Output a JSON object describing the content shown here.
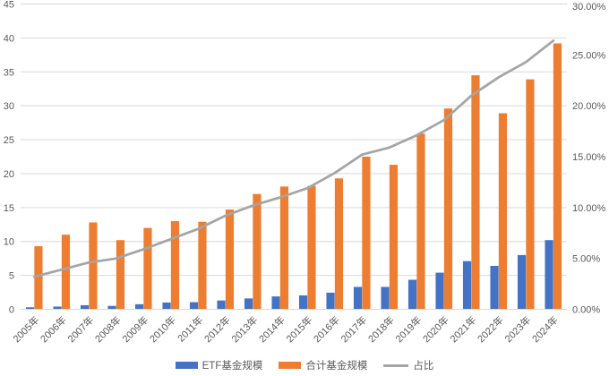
{
  "chart_data": {
    "type": "bar",
    "subtype": "combo-bar-line-dual-axis",
    "title": "",
    "categories": [
      "2005年",
      "2006年",
      "2007年",
      "2008年",
      "2009年",
      "2010年",
      "2011年",
      "2012年",
      "2013年",
      "2014年",
      "2015年",
      "2016年",
      "2017年",
      "2018年",
      "2019年",
      "2020年",
      "2021年",
      "2022年",
      "2023年",
      "2024年"
    ],
    "series": [
      {
        "name": "ETF基金规模",
        "type": "bar",
        "axis": "left",
        "color": "#4472C4",
        "values": [
          0.3,
          0.4,
          0.6,
          0.5,
          0.75,
          1.0,
          1.05,
          1.3,
          1.6,
          1.9,
          2.05,
          2.45,
          3.3,
          3.3,
          4.35,
          5.4,
          7.1,
          6.4,
          8.0,
          10.2
        ]
      },
      {
        "name": "合计基金规模",
        "type": "bar",
        "axis": "left",
        "color": "#ED7D31",
        "values": [
          9.3,
          11.0,
          12.8,
          10.2,
          12.0,
          13.0,
          12.9,
          14.7,
          17.0,
          18.1,
          18.2,
          19.3,
          22.5,
          21.3,
          25.9,
          29.6,
          34.5,
          28.9,
          33.9,
          39.2
        ]
      },
      {
        "name": "占比",
        "type": "line",
        "axis": "right",
        "color": "#A5A5A5",
        "values": [
          3.2,
          3.9,
          4.6,
          5.0,
          5.9,
          6.9,
          7.9,
          9.2,
          10.2,
          11.0,
          11.9,
          13.4,
          15.2,
          15.9,
          17.1,
          18.6,
          21.0,
          22.8,
          24.3,
          26.4
        ]
      }
    ],
    "left_axis": {
      "min": 0,
      "max": 45,
      "step": 5,
      "tick_labels": [
        "0",
        "5",
        "10",
        "15",
        "20",
        "25",
        "30",
        "35",
        "40",
        "45"
      ]
    },
    "right_axis": {
      "min": 0,
      "max": 30,
      "step": 5,
      "unit": "%",
      "tick_labels": [
        "0.00%",
        "5.00%",
        "10.00%",
        "15.00%",
        "20.00%",
        "25.00%",
        "30.00%"
      ]
    },
    "grid": true,
    "legend_position": "bottom",
    "x_label_rotation_deg": -45
  },
  "legend": {
    "items": [
      {
        "label": "ETF基金规模",
        "swatch": "bar",
        "color": "#4472C4"
      },
      {
        "label": "合计基金规模",
        "swatch": "bar",
        "color": "#ED7D31"
      },
      {
        "label": "占比",
        "swatch": "line",
        "color": "#A5A5A5"
      }
    ]
  },
  "colors": {
    "etf_bar": "#4472C4",
    "total_bar": "#ED7D31",
    "ratio_line": "#A5A5A5",
    "gridline": "#D9D9D9",
    "axis_line": "#D9D9D9",
    "text": "#595959",
    "background": "#FFFFFF"
  }
}
